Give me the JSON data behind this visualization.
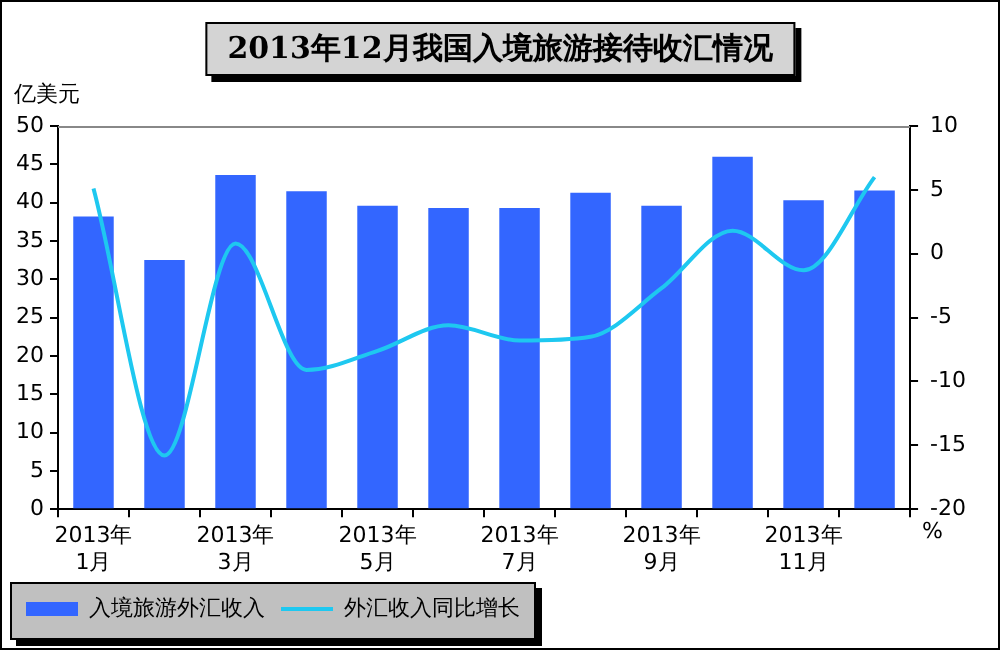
{
  "chart_data": {
    "type": "bar",
    "title": "2013年12月我国入境旅游接待收汇情况",
    "ylabel": "亿美元",
    "y2label": "%",
    "categories": [
      "2013年 1月",
      null,
      "2013年 3月",
      null,
      "2013年 5月",
      null,
      "2013年 7月",
      null,
      "2013年 9月",
      null,
      "2013年 11月",
      null
    ],
    "series": [
      {
        "name": "入境旅游外汇收入",
        "color": "#3366ff",
        "values": [
          38.2,
          32.5,
          43.6,
          41.5,
          39.6,
          39.3,
          39.3,
          41.3,
          39.6,
          46.0,
          40.3,
          41.6
        ]
      },
      {
        "name": "外汇收入同比增长",
        "type": "line",
        "axis": "y2",
        "color": "#1ec8f0",
        "values": [
          5.1,
          -15.8,
          0.8,
          -9.1,
          -7.6,
          -5.6,
          -6.8,
          -6.5,
          -2.7,
          1.8,
          -1.3,
          6.0
        ]
      }
    ],
    "ylim": [
      0,
      50
    ],
    "yticks": [
      0,
      5,
      10,
      15,
      20,
      25,
      30,
      35,
      40,
      45,
      50
    ],
    "y2lim": [
      -20,
      10
    ],
    "y2ticks": [
      -20,
      -15,
      -10,
      -5,
      0,
      5,
      10
    ],
    "grid": false,
    "legend": "bottom left",
    "marker": "none",
    "line_style": "solid"
  }
}
